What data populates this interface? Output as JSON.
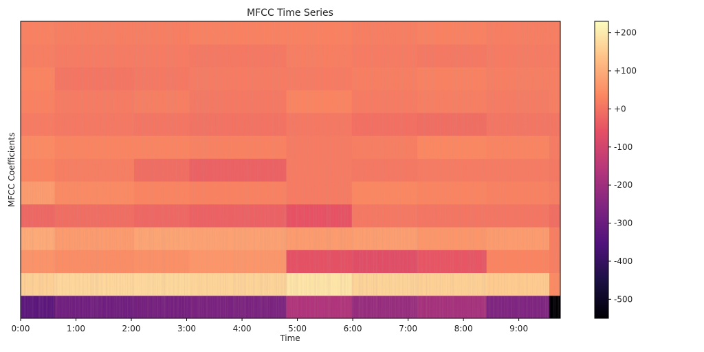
{
  "chart_data": {
    "type": "heatmap",
    "title": "MFCC Time Series",
    "xlabel": "Time",
    "ylabel": "MFCC Coefficients",
    "x_tick_labels": [
      "0:00",
      "1:00",
      "2:00",
      "3:00",
      "4:00",
      "5:00",
      "6:00",
      "7:00",
      "8:00",
      "9:00"
    ],
    "x_tick_seconds": [
      0,
      60,
      120,
      180,
      240,
      300,
      360,
      420,
      480,
      540
    ],
    "xlim_seconds": [
      0,
      585
    ],
    "n_coefficients": 13,
    "segments_seconds": [
      [
        0,
        37
      ],
      [
        37,
        123
      ],
      [
        123,
        183
      ],
      [
        183,
        288
      ],
      [
        288,
        359
      ],
      [
        359,
        430
      ],
      [
        430,
        505
      ],
      [
        505,
        573
      ],
      [
        573,
        585
      ]
    ],
    "coefficient_values": [
      [
        -330,
        -290,
        -280,
        -270,
        -170,
        -215,
        -190,
        -260,
        -560
      ],
      [
        160,
        170,
        172,
        165,
        190,
        165,
        160,
        150,
        40
      ],
      [
        55,
        45,
        50,
        60,
        -60,
        -70,
        -50,
        30,
        20
      ],
      [
        95,
        70,
        85,
        80,
        70,
        75,
        60,
        70,
        20
      ],
      [
        -20,
        -10,
        -20,
        -30,
        -55,
        10,
        5,
        5,
        -10
      ],
      [
        70,
        40,
        30,
        25,
        15,
        35,
        30,
        25,
        20
      ],
      [
        30,
        20,
        -10,
        -30,
        15,
        10,
        15,
        15,
        10
      ],
      [
        40,
        30,
        30,
        25,
        15,
        20,
        35,
        30,
        15
      ],
      [
        15,
        10,
        5,
        0,
        10,
        -5,
        -10,
        5,
        5
      ],
      [
        25,
        15,
        20,
        10,
        30,
        15,
        20,
        15,
        20
      ],
      [
        30,
        5,
        10,
        15,
        15,
        20,
        25,
        20,
        20
      ],
      [
        20,
        15,
        15,
        10,
        20,
        15,
        10,
        15,
        15
      ],
      [
        25,
        20,
        20,
        25,
        25,
        20,
        25,
        20,
        20
      ]
    ],
    "colormap": "magma",
    "colorbar_range": [
      -550,
      230
    ],
    "colorbar_tick_labels": [
      "+200",
      "+100",
      "+0",
      "-100",
      "-200",
      "-300",
      "-400",
      "-500"
    ],
    "colorbar_tick_values": [
      200,
      100,
      0,
      -100,
      -200,
      -300,
      -400,
      -500
    ],
    "grid": false
  }
}
